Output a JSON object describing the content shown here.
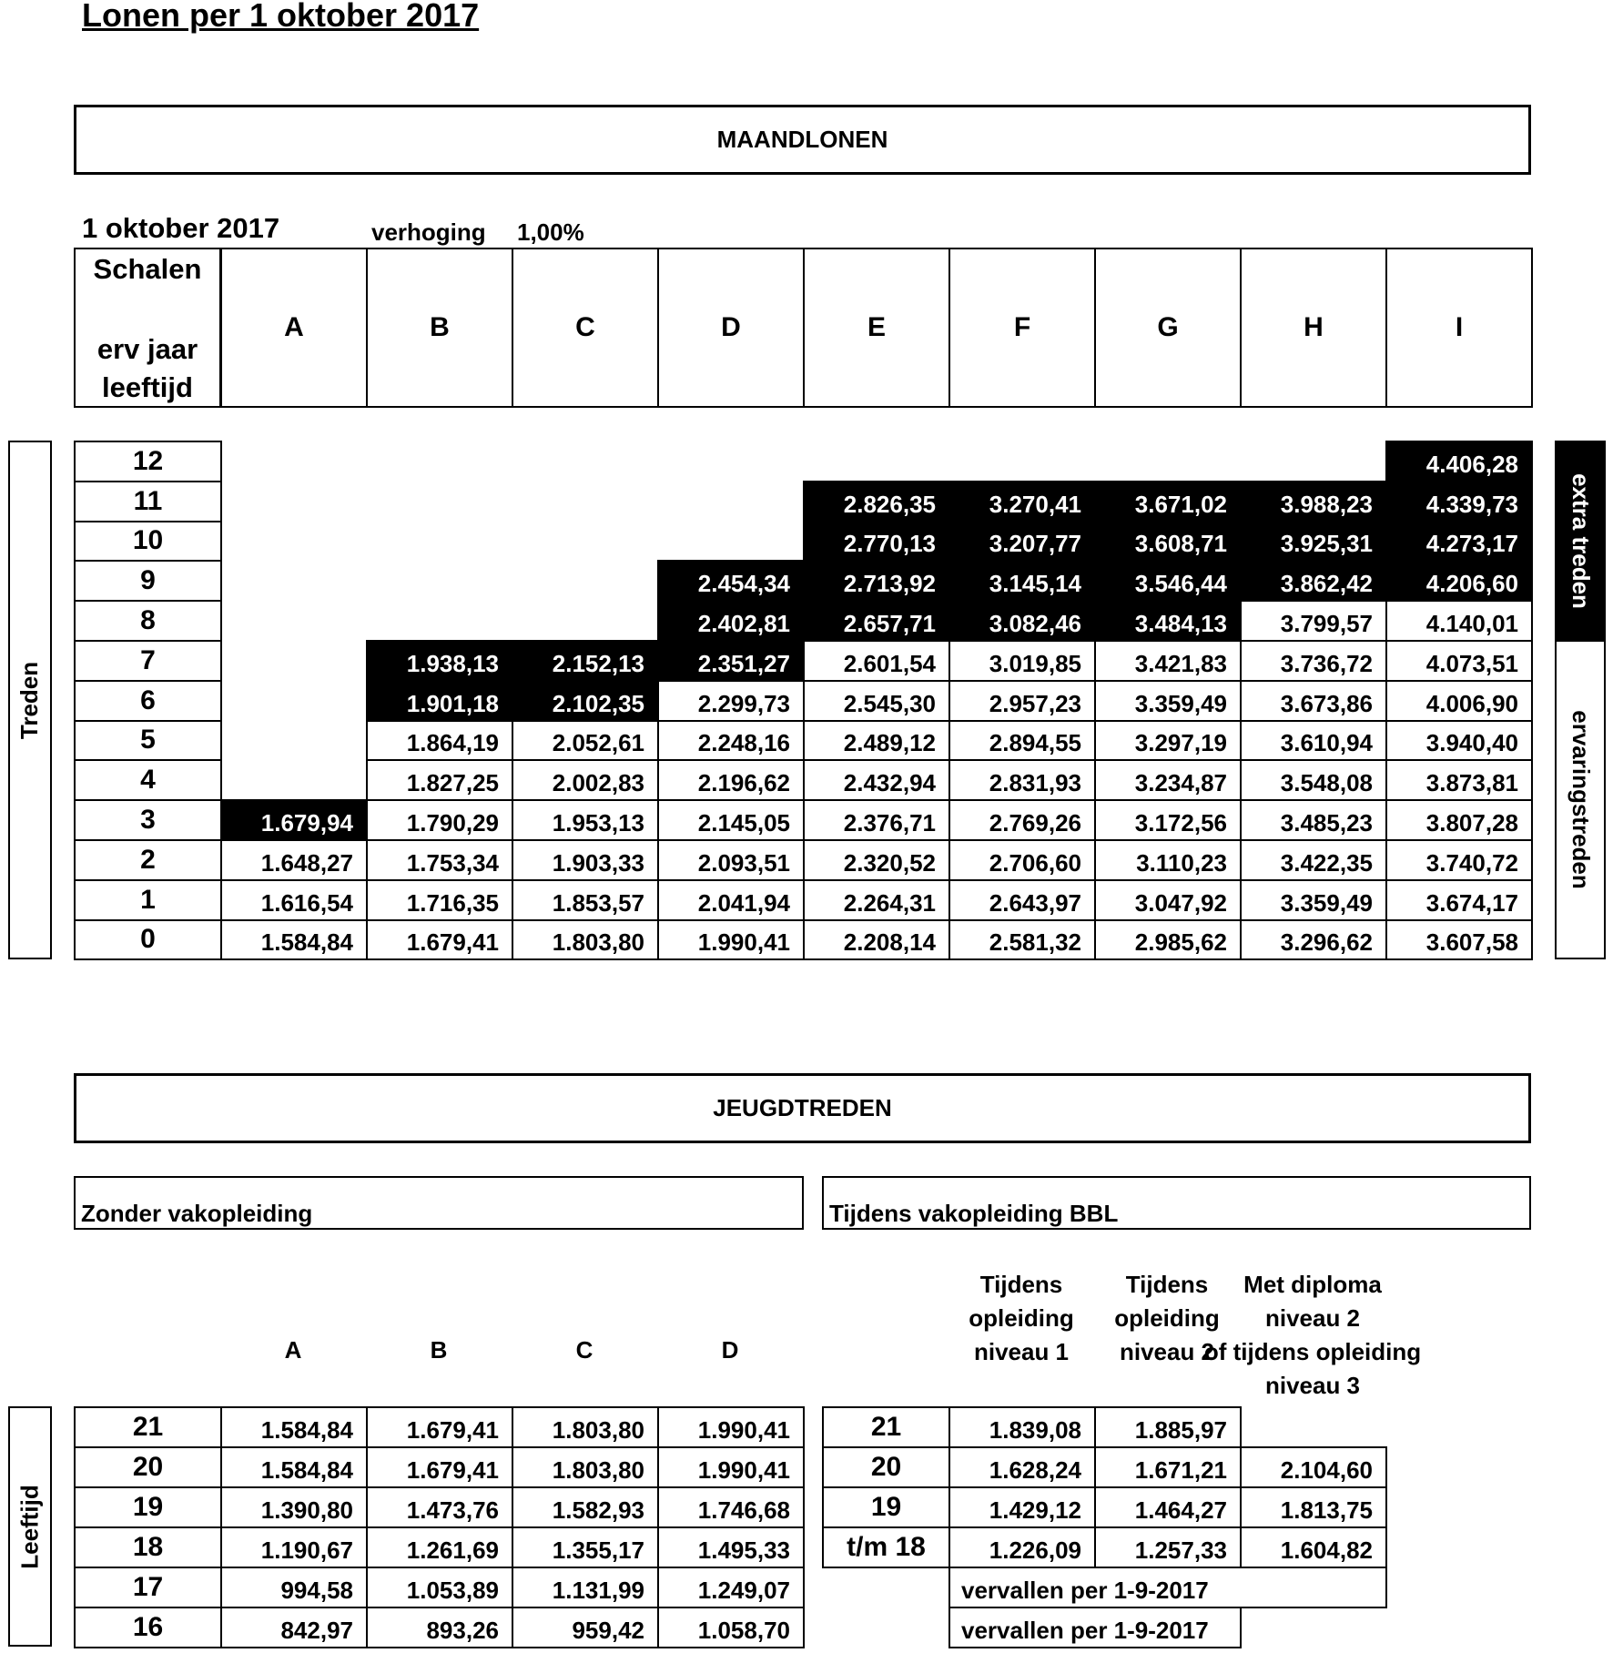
{
  "title": "Lonen per 1 oktober 2017",
  "maandlonen": {
    "heading": "MAANDLONEN",
    "date": "1 oktober 2017",
    "increase_label": "verhoging",
    "increase_value": "1,00%",
    "header_label_top": "Schalen",
    "header_label_mid": "erv jaar",
    "header_label_bottom": "leeftijd",
    "columns": [
      "A",
      "B",
      "C",
      "D",
      "E",
      "F",
      "G",
      "H",
      "I"
    ],
    "side_left": "Treden",
    "side_right_top": "extra treden",
    "side_right_bottom": "ervaringstreden",
    "rows": [
      {
        "trede": "12",
        "values": [
          null,
          null,
          null,
          null,
          null,
          null,
          null,
          null,
          "4.406,28"
        ],
        "dark": [
          0,
          0,
          0,
          0,
          0,
          0,
          0,
          0,
          1
        ]
      },
      {
        "trede": "11",
        "values": [
          null,
          null,
          null,
          null,
          "2.826,35",
          "3.270,41",
          "3.671,02",
          "3.988,23",
          "4.339,73"
        ],
        "dark": [
          0,
          0,
          0,
          0,
          1,
          1,
          1,
          1,
          1
        ]
      },
      {
        "trede": "10",
        "values": [
          null,
          null,
          null,
          null,
          "2.770,13",
          "3.207,77",
          "3.608,71",
          "3.925,31",
          "4.273,17"
        ],
        "dark": [
          0,
          0,
          0,
          0,
          1,
          1,
          1,
          1,
          1
        ]
      },
      {
        "trede": "9",
        "values": [
          null,
          null,
          null,
          "2.454,34",
          "2.713,92",
          "3.145,14",
          "3.546,44",
          "3.862,42",
          "4.206,60"
        ],
        "dark": [
          0,
          0,
          0,
          1,
          1,
          1,
          1,
          1,
          1
        ]
      },
      {
        "trede": "8",
        "values": [
          null,
          null,
          null,
          "2.402,81",
          "2.657,71",
          "3.082,46",
          "3.484,13",
          "3.799,57",
          "4.140,01"
        ],
        "dark": [
          0,
          0,
          0,
          1,
          1,
          1,
          1,
          0,
          0
        ]
      },
      {
        "trede": "7",
        "values": [
          null,
          "1.938,13",
          "2.152,13",
          "2.351,27",
          "2.601,54",
          "3.019,85",
          "3.421,83",
          "3.736,72",
          "4.073,51"
        ],
        "dark": [
          0,
          1,
          1,
          1,
          0,
          0,
          0,
          0,
          0
        ]
      },
      {
        "trede": "6",
        "values": [
          null,
          "1.901,18",
          "2.102,35",
          "2.299,73",
          "2.545,30",
          "2.957,23",
          "3.359,49",
          "3.673,86",
          "4.006,90"
        ],
        "dark": [
          0,
          1,
          1,
          0,
          0,
          0,
          0,
          0,
          0
        ]
      },
      {
        "trede": "5",
        "values": [
          null,
          "1.864,19",
          "2.052,61",
          "2.248,16",
          "2.489,12",
          "2.894,55",
          "3.297,19",
          "3.610,94",
          "3.940,40"
        ],
        "dark": [
          0,
          0,
          0,
          0,
          0,
          0,
          0,
          0,
          0
        ]
      },
      {
        "trede": "4",
        "values": [
          null,
          "1.827,25",
          "2.002,83",
          "2.196,62",
          "2.432,94",
          "2.831,93",
          "3.234,87",
          "3.548,08",
          "3.873,81"
        ],
        "dark": [
          0,
          0,
          0,
          0,
          0,
          0,
          0,
          0,
          0
        ]
      },
      {
        "trede": "3",
        "values": [
          "1.679,94",
          "1.790,29",
          "1.953,13",
          "2.145,05",
          "2.376,71",
          "2.769,26",
          "3.172,56",
          "3.485,23",
          "3.807,28"
        ],
        "dark": [
          1,
          0,
          0,
          0,
          0,
          0,
          0,
          0,
          0
        ]
      },
      {
        "trede": "2",
        "values": [
          "1.648,27",
          "1.753,34",
          "1.903,33",
          "2.093,51",
          "2.320,52",
          "2.706,60",
          "3.110,23",
          "3.422,35",
          "3.740,72"
        ],
        "dark": [
          0,
          0,
          0,
          0,
          0,
          0,
          0,
          0,
          0
        ]
      },
      {
        "trede": "1",
        "values": [
          "1.616,54",
          "1.716,35",
          "1.853,57",
          "2.041,94",
          "2.264,31",
          "2.643,97",
          "3.047,92",
          "3.359,49",
          "3.674,17"
        ],
        "dark": [
          0,
          0,
          0,
          0,
          0,
          0,
          0,
          0,
          0
        ]
      },
      {
        "trede": "0",
        "values": [
          "1.584,84",
          "1.679,41",
          "1.803,80",
          "1.990,41",
          "2.208,14",
          "2.581,32",
          "2.985,62",
          "3.296,62",
          "3.607,58"
        ],
        "dark": [
          0,
          0,
          0,
          0,
          0,
          0,
          0,
          0,
          0
        ]
      }
    ]
  },
  "jeugd": {
    "heading": "JEUGDTREDEN",
    "side_label": "Leeftijd",
    "zonder": {
      "title": "Zonder vakopleiding",
      "columns": [
        "A",
        "B",
        "C",
        "D"
      ],
      "rows": [
        {
          "age": "21",
          "values": [
            "1.584,84",
            "1.679,41",
            "1.803,80",
            "1.990,41"
          ]
        },
        {
          "age": "20",
          "values": [
            "1.584,84",
            "1.679,41",
            "1.803,80",
            "1.990,41"
          ]
        },
        {
          "age": "19",
          "values": [
            "1.390,80",
            "1.473,76",
            "1.582,93",
            "1.746,68"
          ]
        },
        {
          "age": "18",
          "values": [
            "1.190,67",
            "1.261,69",
            "1.355,17",
            "1.495,33"
          ]
        },
        {
          "age": "17",
          "values": [
            "994,58",
            "1.053,89",
            "1.131,99",
            "1.249,07"
          ]
        },
        {
          "age": "16",
          "values": [
            "842,97",
            "893,26",
            "959,42",
            "1.058,70"
          ]
        }
      ]
    },
    "tijdens": {
      "title": "Tijdens vakopleiding BBL",
      "columns": [
        [
          "Tijdens",
          "opleiding",
          "niveau 1"
        ],
        [
          "Tijdens",
          "opleiding",
          "niveau 2"
        ],
        [
          "Met diploma niveau 2",
          "of tijdens opleiding",
          "niveau 3"
        ]
      ],
      "rows": [
        {
          "age": "21",
          "values": [
            "1.839,08",
            "1.885,97",
            null
          ]
        },
        {
          "age": "20",
          "values": [
            "1.628,24",
            "1.671,21",
            "2.104,60"
          ]
        },
        {
          "age": "19",
          "values": [
            "1.429,12",
            "1.464,27",
            "1.813,75"
          ]
        },
        {
          "age": "t/m 18",
          "values": [
            "1.226,09",
            "1.257,33",
            "1.604,82"
          ]
        }
      ],
      "expired_17": "vervallen per 1-9-2017",
      "expired_16": "vervallen per 1-9-2017"
    }
  }
}
